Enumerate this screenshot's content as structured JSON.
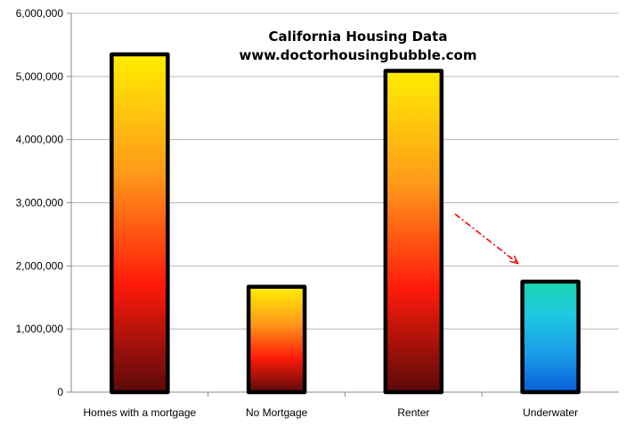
{
  "chart_data": {
    "type": "bar",
    "title": "California Housing Data",
    "subtitle": "www.doctorhousingbubble.com",
    "categories": [
      "Homes with a mortgage",
      "No Mortgage",
      "Renter",
      "Underwater"
    ],
    "values": [
      5350000,
      1670000,
      5090000,
      1750000
    ],
    "ylim": [
      0,
      6000000
    ],
    "yticks": [
      0,
      1000000,
      2000000,
      3000000,
      4000000,
      5000000,
      6000000
    ],
    "ytick_labels": [
      "0",
      "1,000,000",
      "2,000,000",
      "3,000,000",
      "4,000,000",
      "5,000,000",
      "6,000,000"
    ],
    "grid": true,
    "xlabel": "",
    "ylabel": ""
  },
  "colors": {
    "fire_gradient": [
      "#ffee00",
      "#ff9a1a",
      "#ff1a0a",
      "#5a0a0a"
    ],
    "water_gradient": [
      "#1ad6b0",
      "#1ec9e0",
      "#1a9de8",
      "#0a5ed8"
    ],
    "gridline": "#b8b8b8",
    "bar_outline": "#000000",
    "arrow": "#ff0000"
  }
}
